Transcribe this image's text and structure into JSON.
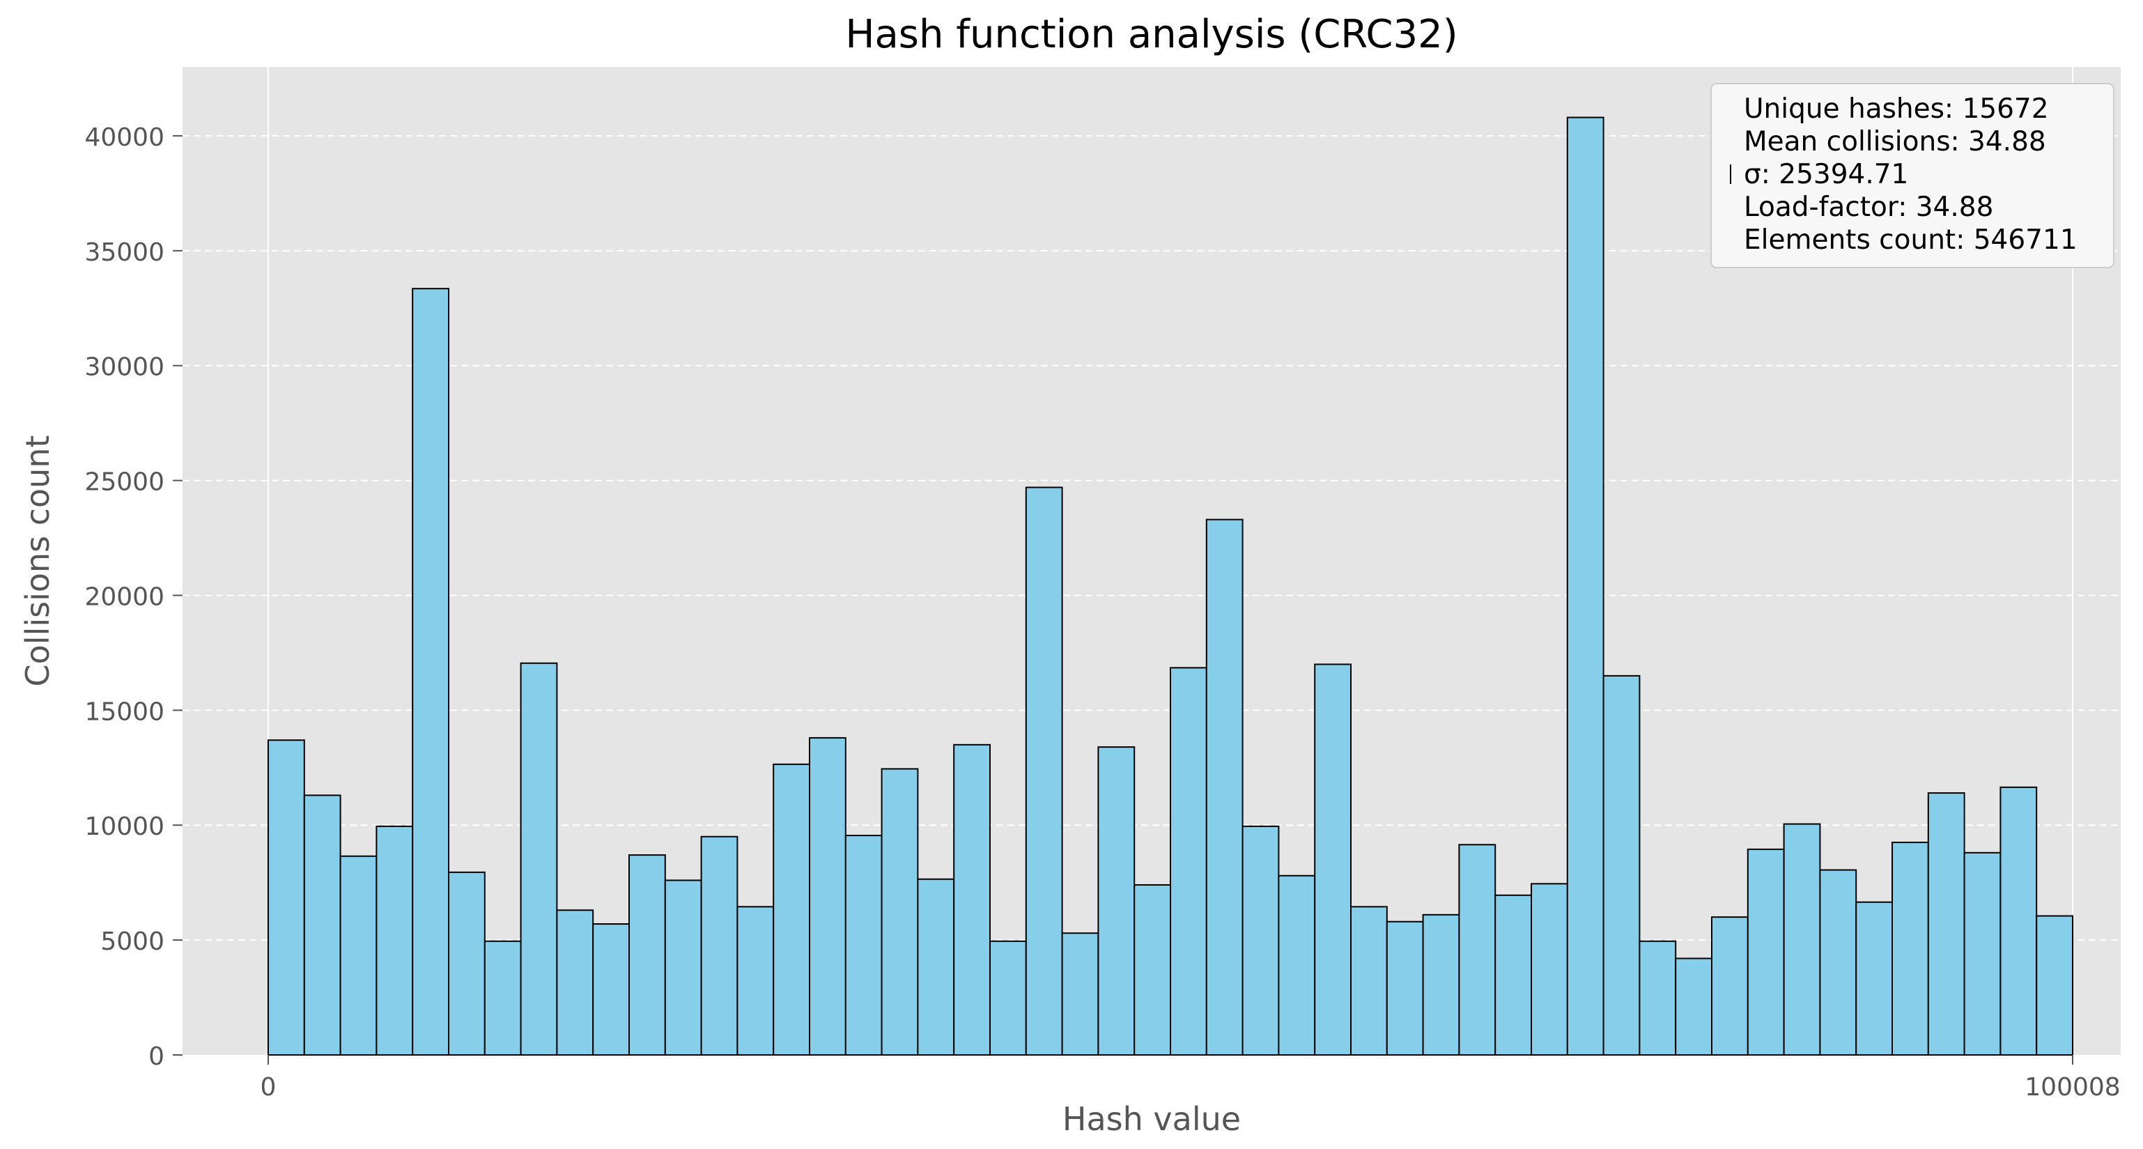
{
  "chart_data": {
    "type": "bar",
    "title": "Hash function analysis (CRC32)",
    "xlabel": "Hash value",
    "ylabel": "Collisions count",
    "xlim": [
      -5000,
      105000
    ],
    "ylim": [
      0,
      43000
    ],
    "x_ticks": [
      0,
      100008
    ],
    "x_tick_labels": [
      "0",
      "100008"
    ],
    "y_ticks": [
      0,
      5000,
      10000,
      15000,
      20000,
      25000,
      30000,
      35000,
      40000
    ],
    "y_tick_labels": [
      "0",
      "5000",
      "10000",
      "15000",
      "20000",
      "25000",
      "30000",
      "35000",
      "40000"
    ],
    "grid": true,
    "bin_start": 0,
    "bin_end": 100008,
    "values": [
      13700,
      11300,
      8650,
      9950,
      33350,
      7950,
      4950,
      17050,
      6300,
      5700,
      8700,
      7600,
      9500,
      6450,
      12650,
      13800,
      9550,
      12450,
      7650,
      13500,
      4950,
      24700,
      5300,
      13400,
      7400,
      16850,
      23300,
      9950,
      7800,
      17000,
      6450,
      5800,
      6100,
      9150,
      6950,
      7450,
      40800,
      16500,
      4950,
      4200,
      6000,
      8950,
      10050,
      8050,
      6650,
      9250,
      11400,
      8800,
      11650,
      6050
    ],
    "colors": {
      "bar_fill": "#87ceeb",
      "bar_edge": "#000000",
      "plot_bg": "#e5e5e5",
      "grid": "#ffffff"
    },
    "legend_position": "top-right",
    "legend_lines": [
      "Unique hashes: 15672",
      "Mean collisions: 34.88",
      "σ: 25394.71",
      "Load-factor: 34.88",
      "Elements count: 546711"
    ]
  }
}
